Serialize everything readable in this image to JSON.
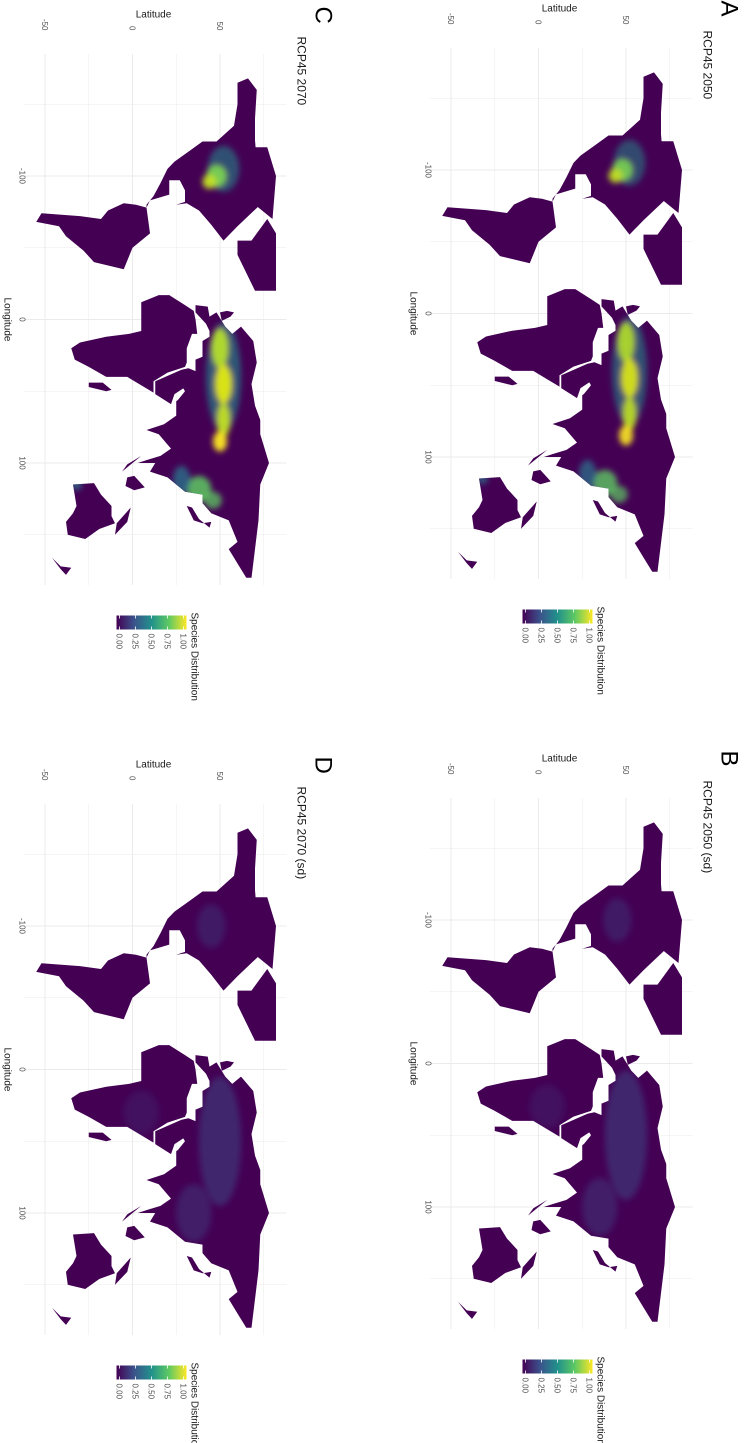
{
  "panels": [
    {
      "letter": "A",
      "title": "RCP45 2050",
      "kind": "mean"
    },
    {
      "letter": "B",
      "title": "RCP45 2050 (sd)",
      "kind": "sd"
    },
    {
      "letter": "C",
      "title": "RCP45 2070",
      "kind": "mean"
    },
    {
      "letter": "D",
      "title": "RCP45 2070 (sd)",
      "kind": "sd"
    }
  ],
  "chart_data": {
    "type": "heatmap",
    "xlabel": "Longitude",
    "ylabel": "Latitude",
    "x_ticks": [
      "-100",
      "0",
      "100"
    ],
    "y_ticks": [
      "-50",
      "0",
      "50"
    ],
    "xlim": [
      -180,
      180
    ],
    "ylim": [
      -60,
      85
    ],
    "grid": true,
    "legend": {
      "title": "Species Distribution",
      "ticks": [
        "0.00",
        "0.25",
        "0.50",
        "0.75",
        "1.00"
      ],
      "range": [
        0,
        1
      ],
      "colormap": "viridis",
      "colors": [
        "#440154",
        "#3b528b",
        "#21918c",
        "#5ec962",
        "#fde725"
      ],
      "placement": "right"
    }
  }
}
